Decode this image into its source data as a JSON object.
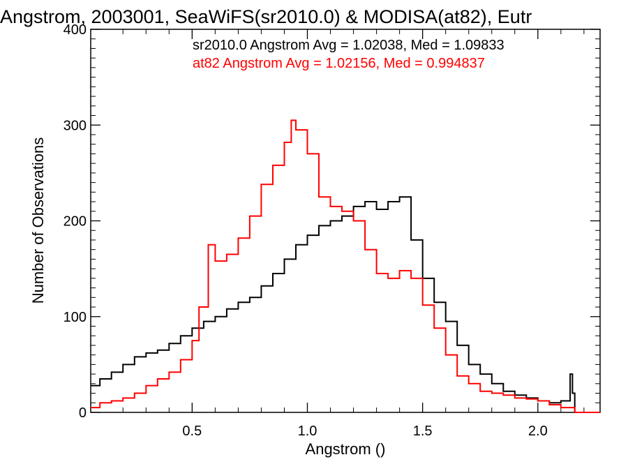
{
  "chart_data": {
    "type": "step-histogram",
    "title": "Angstrom, 2003001, SeaWiFS(sr2010.0) & MODISA(at82), Eutr",
    "xlabel": "Angstrom ()",
    "ylabel": "Number of Observations",
    "xlim": [
      0.06,
      2.27
    ],
    "ylim": [
      0,
      400
    ],
    "xticks": [
      0.5,
      1.0,
      1.5,
      2.0
    ],
    "xtick_labels": [
      "0.5",
      "1.0",
      "1.5",
      "2.0"
    ],
    "yticks": [
      0,
      100,
      200,
      300,
      400
    ],
    "ytick_labels": [
      "0",
      "100",
      "200",
      "300",
      "400"
    ],
    "grid": false,
    "annotations": [
      {
        "text": "sr2010.0 Angstrom Avg = 1.02038, Med = 1.09833",
        "color": "#000000"
      },
      {
        "text": "at82 Angstrom Avg = 1.02156, Med = 0.994837",
        "color": "#ff0000"
      }
    ],
    "series": [
      {
        "color": "#000000",
        "x": [
          0.06,
          0.1,
          0.15,
          0.2,
          0.25,
          0.3,
          0.35,
          0.4,
          0.45,
          0.5,
          0.55,
          0.6,
          0.65,
          0.7,
          0.75,
          0.8,
          0.85,
          0.9,
          0.95,
          1.0,
          1.05,
          1.1,
          1.15,
          1.2,
          1.25,
          1.3,
          1.35,
          1.4,
          1.45,
          1.5,
          1.55,
          1.6,
          1.65,
          1.7,
          1.75,
          1.8,
          1.85,
          1.9,
          1.95,
          2.0,
          2.05,
          2.1,
          2.14,
          2.15,
          2.16,
          2.27
        ],
        "y": [
          28,
          35,
          42,
          50,
          58,
          62,
          65,
          72,
          80,
          88,
          95,
          100,
          108,
          115,
          120,
          132,
          145,
          160,
          175,
          185,
          195,
          200,
          205,
          215,
          220,
          212,
          220,
          225,
          180,
          140,
          115,
          95,
          70,
          50,
          40,
          30,
          22,
          18,
          15,
          12,
          10,
          12,
          40,
          20,
          0,
          0
        ]
      },
      {
        "color": "#ff0000",
        "x": [
          0.06,
          0.1,
          0.15,
          0.2,
          0.25,
          0.3,
          0.35,
          0.4,
          0.45,
          0.5,
          0.53,
          0.57,
          0.6,
          0.65,
          0.7,
          0.75,
          0.8,
          0.85,
          0.9,
          0.93,
          0.95,
          1.0,
          1.05,
          1.1,
          1.15,
          1.2,
          1.25,
          1.3,
          1.35,
          1.4,
          1.45,
          1.5,
          1.55,
          1.6,
          1.65,
          1.7,
          1.75,
          1.8,
          1.85,
          1.9,
          1.95,
          2.0,
          2.05,
          2.1,
          2.15,
          2.16,
          2.27
        ],
        "y": [
          5,
          10,
          12,
          15,
          20,
          28,
          35,
          42,
          55,
          75,
          110,
          175,
          158,
          165,
          182,
          205,
          238,
          258,
          282,
          305,
          295,
          270,
          225,
          215,
          210,
          200,
          170,
          145,
          140,
          148,
          140,
          112,
          88,
          60,
          38,
          30,
          22,
          20,
          18,
          15,
          14,
          12,
          8,
          5,
          5,
          0,
          0
        ]
      }
    ]
  }
}
